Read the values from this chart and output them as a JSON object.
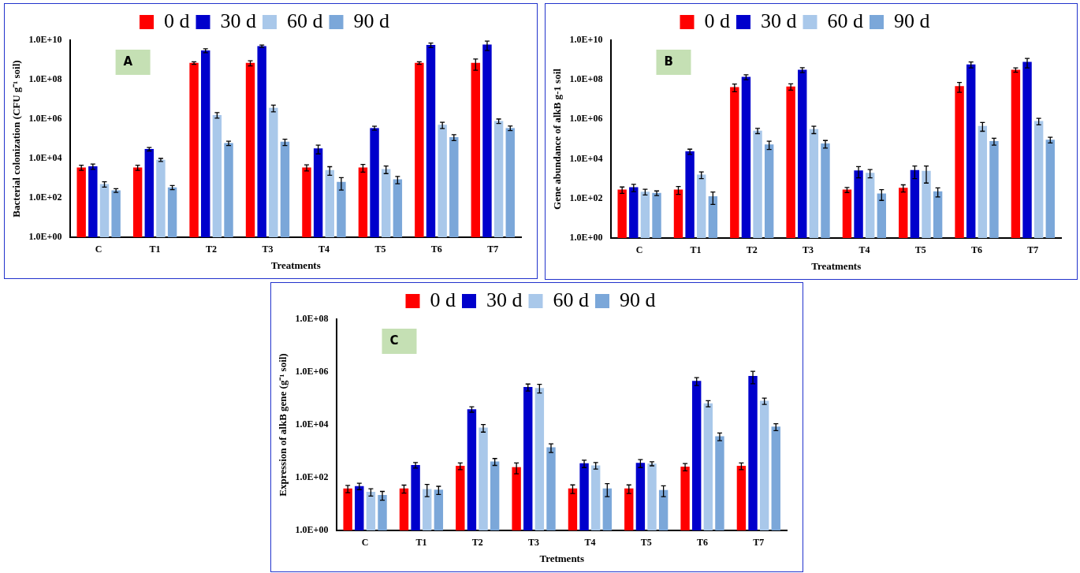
{
  "chart_data": [
    {
      "type": "bar",
      "xlabel": "Treatments",
      "ylabel": "Bacterial colonization (CFU g⁻¹ soil)",
      "annotations": [
        "A"
      ],
      "log": true,
      "grid": false,
      "legend": "top",
      "categories": [
        "C",
        "T1",
        "T2",
        "T3",
        "T4",
        "T5",
        "T6",
        "T7"
      ],
      "ylim": [
        1,
        10000000000
      ],
      "yticks": [
        {
          "value": 1,
          "label": "1.0E+00"
        },
        {
          "value": 100,
          "label": "1.0E+02"
        },
        {
          "value": 10000,
          "label": "1.0E+04"
        },
        {
          "value": 1000000,
          "label": "1.0E+06"
        },
        {
          "value": 100000000,
          "label": "1.0E+08"
        },
        {
          "value": 10000000000,
          "label": "1.0E+10"
        }
      ],
      "series": [
        {
          "name": "0 d",
          "color": "#ff0000",
          "values": [
            3500,
            3500,
            700000000,
            700000000,
            3500,
            3500,
            700000000,
            700000000
          ],
          "errors": [
            1000,
            1000,
            100000000,
            200000000,
            1200,
            1500,
            100000000,
            400000000
          ]
        },
        {
          "name": "30 d",
          "color": "#0000cc",
          "values": [
            4000,
            30000,
            3000000000,
            5000000000,
            32000,
            350000,
            5700000000,
            6000000000
          ],
          "errors": [
            1200,
            6000,
            700000000,
            700000000,
            15000,
            80000,
            1500000000,
            3000000000
          ]
        },
        {
          "name": "60 d",
          "color": "#a9c8ea",
          "values": [
            500,
            8500,
            1600000,
            3700000,
            2600,
            2900,
            510000,
            800000
          ],
          "errors": [
            150,
            1500,
            500000,
            1400000,
            1200,
            1200,
            180000,
            200000
          ]
        },
        {
          "name": "90 d",
          "color": "#7ba7d9",
          "values": [
            240,
            340,
            60000,
            70000,
            650,
            870,
            120000,
            350000
          ],
          "errors": [
            50,
            80,
            15000,
            25000,
            400,
            350,
            40000,
            90000
          ]
        }
      ]
    },
    {
      "type": "bar",
      "xlabel": "Treatments",
      "ylabel": "Gene abundance of alkB g-1 soil",
      "annotations": [
        "B"
      ],
      "log": true,
      "grid": false,
      "legend": "top",
      "categories": [
        "C",
        "T1",
        "T2",
        "T3",
        "T4",
        "T5",
        "T6",
        "T7"
      ],
      "ylim": [
        1,
        10000000000
      ],
      "yticks": [
        {
          "value": 1,
          "label": "1.0E+00"
        },
        {
          "value": 100,
          "label": "1.0E+02"
        },
        {
          "value": 10000,
          "label": "1.0E+04"
        },
        {
          "value": 1000000,
          "label": "1.0E+06"
        },
        {
          "value": 100000000,
          "label": "1.0E+08"
        },
        {
          "value": 10000000000,
          "label": "1.0E+10"
        }
      ],
      "series": [
        {
          "name": "0 d",
          "color": "#ff0000",
          "values": [
            280,
            280,
            43000000,
            46000000,
            280,
            350,
            48000000,
            320000000
          ],
          "errors": [
            100,
            120,
            18000000,
            16000000,
            80,
            140,
            25000000,
            80000000
          ]
        },
        {
          "name": "30 d",
          "color": "#0000cc",
          "values": [
            370,
            24000,
            140000000,
            320000000,
            2600,
            2700,
            600000000,
            800000000
          ],
          "errors": [
            150,
            7000,
            40000000,
            90000000,
            1500,
            1700,
            200000000,
            400000000
          ]
        },
        {
          "name": "60 d",
          "color": "#a9c8ea",
          "values": [
            220,
            1600,
            270000,
            320000,
            2000,
            2500,
            470000,
            830000
          ],
          "errors": [
            70,
            600,
            80000,
            130000,
            900,
            1900,
            220000,
            300000
          ]
        },
        {
          "name": "90 d",
          "color": "#7ba7d9",
          "values": [
            190,
            130,
            54000,
            60000,
            180,
            230,
            80000,
            94000
          ],
          "errors": [
            50,
            80,
            24000,
            25000,
            100,
            110,
            30000,
            30000
          ]
        }
      ]
    },
    {
      "type": "bar",
      "xlabel": "Tretments",
      "ylabel": "Expression of alkB gene (g⁻¹ soil)",
      "annotations": [
        "C"
      ],
      "log": true,
      "grid": false,
      "legend": "top",
      "categories": [
        "C",
        "T1",
        "T2",
        "T3",
        "T4",
        "T5",
        "T6",
        "T7"
      ],
      "ylim": [
        1,
        100000000
      ],
      "yticks": [
        {
          "value": 1,
          "label": "1.0E+00"
        },
        {
          "value": 100,
          "label": "1.0E+02"
        },
        {
          "value": 10000,
          "label": "1.0E+04"
        },
        {
          "value": 1000000,
          "label": "1.0E+06"
        },
        {
          "value": 100000000,
          "label": "1.0E+08"
        }
      ],
      "series": [
        {
          "name": "0 d",
          "color": "#ff0000",
          "values": [
            39,
            39,
            280,
            250,
            39,
            39,
            260,
            280
          ],
          "errors": [
            12,
            13,
            80,
            110,
            14,
            14,
            80,
            80
          ]
        },
        {
          "name": "30 d",
          "color": "#0000cc",
          "values": [
            48,
            300,
            39000,
            270000,
            350,
            360,
            460000,
            710000
          ],
          "errors": [
            13,
            70,
            9000,
            80000,
            110,
            120,
            150000,
            350000
          ]
        },
        {
          "name": "60 d",
          "color": "#a9c8ea",
          "values": [
            29,
            37,
            7800,
            250000,
            290,
            340,
            65000,
            81000
          ],
          "errors": [
            9,
            18,
            2500,
            90000,
            80,
            60,
            17000,
            22000
          ]
        },
        {
          "name": "90 d",
          "color": "#7ba7d9",
          "values": [
            22,
            35,
            410,
            1400,
            39,
            34,
            3700,
            8500
          ],
          "errors": [
            8,
            12,
            120,
            500,
            20,
            15,
            1200,
            2500
          ]
        }
      ]
    }
  ]
}
